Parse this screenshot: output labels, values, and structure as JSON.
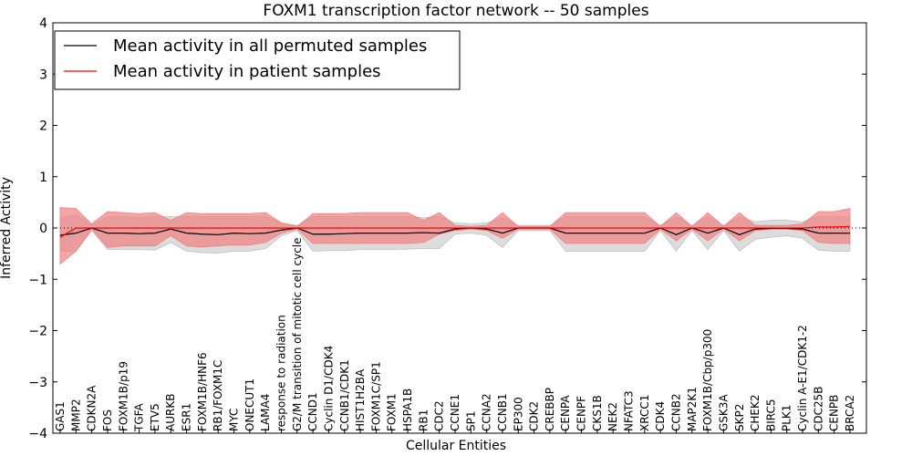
{
  "chart_data": {
    "type": "line",
    "title": "FOXM1 transcription factor network -- 50 samples",
    "xlabel": "Cellular Entities",
    "ylabel": "Inferred Activity",
    "ylim": [
      -4,
      4
    ],
    "yticks": [
      -4,
      -3,
      -2,
      -1,
      0,
      1,
      2,
      3,
      4
    ],
    "grid": false,
    "legend_position": "top-left",
    "categories": [
      "GAS1",
      "MMP2",
      "CDKN2A",
      "FOS",
      "FOXM1B/p19",
      "TGFA",
      "ETV5",
      "AURKB",
      "ESR1",
      "FOXM1B/HNF6",
      "RB1/FOXM1C",
      "MYC",
      "ONECUT1",
      "LAMA4",
      "response to radiation",
      "G2/M transition of mitotic cell cycle",
      "CCND1",
      "Cyclin D1/CDK4",
      "CCNB1/CDK1",
      "HIST1H2BA",
      "FOXM1C/SP1",
      "FOXM1",
      "HSPA1B",
      "RB1",
      "CDC2",
      "CCNE1",
      "SP1",
      "CCNA2",
      "CCNB1",
      "EP300",
      "CDK2",
      "CREBBP",
      "CENPA",
      "CENPF",
      "CKS1B",
      "NEK2",
      "NFATC3",
      "XRCC1",
      "CDK4",
      "CCNB2",
      "MAP2K1",
      "FOXM1B/Cbp/p300",
      "GSK3A",
      "SKP2",
      "CHEK2",
      "BIRC5",
      "PLK1",
      "Cyclin A-E1/CDK1-2",
      "CDC25B",
      "CENPB",
      "BRCA2"
    ],
    "series": [
      {
        "name": "Mean activity in all permuted samples",
        "color": "#000000",
        "band_color": "#c0c0c0",
        "values": [
          -0.14,
          -0.1,
          0.0,
          -0.1,
          -0.1,
          -0.11,
          -0.1,
          -0.02,
          -0.1,
          -0.12,
          -0.13,
          -0.1,
          -0.11,
          -0.1,
          -0.04,
          0.0,
          -0.12,
          -0.12,
          -0.11,
          -0.1,
          -0.1,
          -0.1,
          -0.1,
          -0.09,
          -0.1,
          -0.02,
          0.0,
          -0.02,
          -0.1,
          0.0,
          0.0,
          0.0,
          -0.1,
          -0.1,
          -0.1,
          -0.1,
          -0.1,
          -0.1,
          0.0,
          -0.13,
          0.0,
          -0.1,
          0.0,
          -0.13,
          -0.02,
          -0.01,
          -0.01,
          -0.02,
          -0.1,
          -0.1,
          -0.1
        ],
        "lower": [
          -0.45,
          -0.45,
          -0.05,
          -0.42,
          -0.42,
          -0.42,
          -0.43,
          -0.28,
          -0.45,
          -0.48,
          -0.49,
          -0.45,
          -0.45,
          -0.4,
          -0.15,
          -0.05,
          -0.45,
          -0.44,
          -0.44,
          -0.42,
          -0.42,
          -0.42,
          -0.41,
          -0.4,
          -0.4,
          -0.12,
          -0.1,
          -0.14,
          -0.38,
          -0.05,
          -0.05,
          -0.05,
          -0.45,
          -0.45,
          -0.45,
          -0.45,
          -0.45,
          -0.45,
          -0.05,
          -0.45,
          -0.05,
          -0.42,
          -0.05,
          -0.45,
          -0.22,
          -0.18,
          -0.15,
          -0.2,
          -0.43,
          -0.45,
          -0.45
        ],
        "upper": [
          0.2,
          0.25,
          0.05,
          0.22,
          0.22,
          0.2,
          0.22,
          0.22,
          0.22,
          0.22,
          0.22,
          0.22,
          0.22,
          0.22,
          0.1,
          0.05,
          0.22,
          0.22,
          0.22,
          0.22,
          0.22,
          0.22,
          0.22,
          0.2,
          0.22,
          0.1,
          0.08,
          0.1,
          0.2,
          0.05,
          0.05,
          0.05,
          0.22,
          0.22,
          0.22,
          0.22,
          0.22,
          0.22,
          0.05,
          0.22,
          0.05,
          0.22,
          0.05,
          0.22,
          0.12,
          0.15,
          0.15,
          0.12,
          0.22,
          0.22,
          0.22
        ]
      },
      {
        "name": "Mean activity in patient samples",
        "color": "#ff0000",
        "band_color": "#f08080",
        "values": [
          -0.18,
          0.0,
          0.0,
          0.0,
          0.0,
          0.0,
          0.0,
          0.0,
          0.0,
          0.0,
          0.0,
          0.0,
          0.0,
          0.0,
          0.0,
          0.0,
          0.0,
          0.0,
          0.0,
          0.0,
          0.0,
          0.0,
          0.0,
          0.0,
          0.0,
          0.0,
          0.0,
          0.0,
          0.0,
          0.0,
          0.0,
          0.0,
          0.0,
          0.0,
          0.0,
          0.0,
          0.0,
          0.0,
          0.0,
          0.0,
          0.0,
          0.0,
          0.0,
          0.0,
          0.0,
          0.0,
          0.0,
          0.0,
          0.02,
          0.02,
          0.03
        ],
        "lower": [
          -0.7,
          -0.45,
          -0.02,
          -0.38,
          -0.35,
          -0.35,
          -0.35,
          -0.15,
          -0.35,
          -0.37,
          -0.35,
          -0.33,
          -0.33,
          -0.28,
          -0.1,
          -0.02,
          -0.3,
          -0.3,
          -0.3,
          -0.3,
          -0.3,
          -0.3,
          -0.3,
          -0.28,
          -0.12,
          -0.05,
          -0.02,
          -0.05,
          -0.2,
          -0.02,
          -0.02,
          -0.02,
          -0.3,
          -0.3,
          -0.3,
          -0.3,
          -0.3,
          -0.3,
          -0.02,
          -0.25,
          -0.02,
          -0.25,
          -0.02,
          -0.25,
          -0.05,
          -0.02,
          -0.02,
          -0.05,
          -0.28,
          -0.3,
          -0.3
        ],
        "upper": [
          0.4,
          0.38,
          0.08,
          0.32,
          0.3,
          0.28,
          0.3,
          0.15,
          0.3,
          0.28,
          0.28,
          0.28,
          0.28,
          0.3,
          0.1,
          0.03,
          0.28,
          0.28,
          0.28,
          0.3,
          0.3,
          0.3,
          0.3,
          0.15,
          0.3,
          0.05,
          0.03,
          0.05,
          0.3,
          0.03,
          0.03,
          0.03,
          0.3,
          0.3,
          0.3,
          0.3,
          0.3,
          0.3,
          0.03,
          0.3,
          0.03,
          0.3,
          0.03,
          0.3,
          0.05,
          0.05,
          0.05,
          0.08,
          0.32,
          0.32,
          0.38
        ]
      }
    ]
  }
}
